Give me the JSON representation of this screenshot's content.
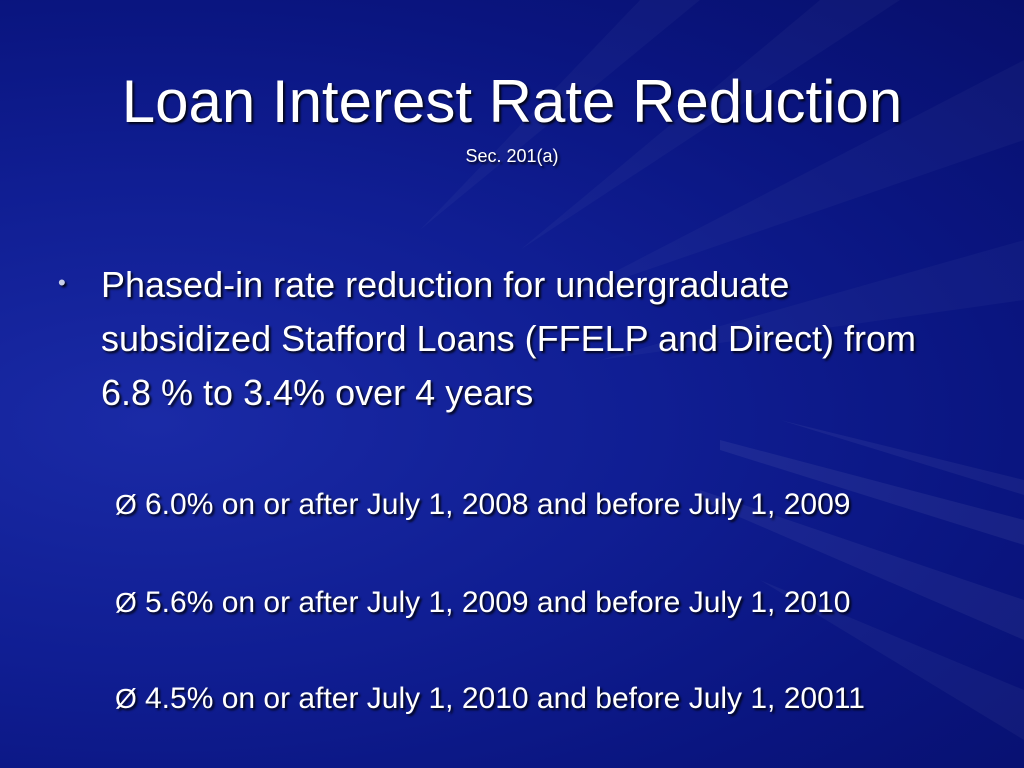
{
  "slide": {
    "title": "Loan Interest Rate Reduction",
    "subtitle": "Sec. 201(a)",
    "main_bullet": {
      "marker": "•",
      "text": "Phased-in rate reduction for undergraduate subsidized Stafford Loans (FFELP and Direct) from 6.8 % to 3.4% over 4 years"
    },
    "sub_bullets": [
      {
        "marker": "Ø",
        "text": "6.0% on or after July 1, 2008 and before July 1, 2009"
      },
      {
        "marker": "Ø",
        "text": "5.6% on or after July 1, 2009 and before July 1, 2010"
      },
      {
        "marker": "Ø",
        "text": "4.5% on or after July 1, 2010 and before July 1, 20011"
      }
    ]
  },
  "colors": {
    "background": "#0c1784",
    "text": "#ffffff",
    "bullet": "#c9cfe8"
  }
}
